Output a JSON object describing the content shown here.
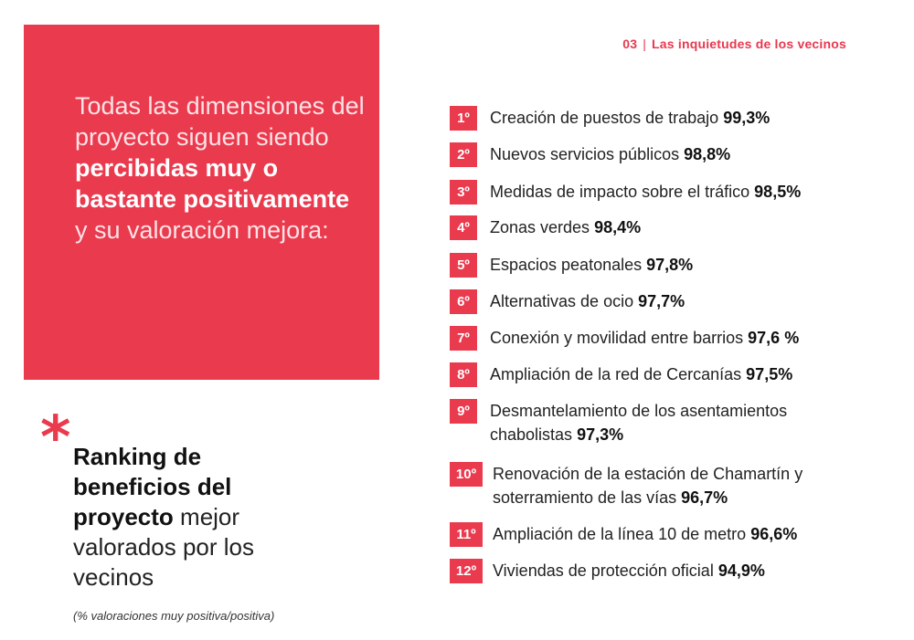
{
  "header": {
    "section": "03",
    "separator": "|",
    "title": "Las inquietudes de los vecinos"
  },
  "intro": {
    "part1": "Todas las dimensiones del proyecto siguen siendo ",
    "bold1": "percibidas muy o bastante positivamente",
    "part2": " y su valoración mejora:"
  },
  "asterisk": "*",
  "ranking": {
    "bold": "Ranking de beneficios del proyecto",
    "rest": " mejor valorados por los vecinos",
    "footnote": "(% valoraciones muy positiva/positiva)"
  },
  "items": [
    {
      "rank": "1º",
      "text": "Creación de puestos de trabajo",
      "value": "99,3%"
    },
    {
      "rank": "2º",
      "text": "Nuevos servicios públicos",
      "value": "98,8%"
    },
    {
      "rank": "3º",
      "text": "Medidas de impacto sobre el tráfico",
      "value": "98,5%"
    },
    {
      "rank": "4º",
      "text": "Zonas verdes",
      "value": "98,4%"
    },
    {
      "rank": "5º",
      "text": "Espacios peatonales",
      "value": "97,8%"
    },
    {
      "rank": "6º",
      "text": "Alternativas de ocio",
      "value": "97,7%"
    },
    {
      "rank": "7º",
      "text": "Conexión y movilidad entre barrios",
      "value": "97,6 %"
    },
    {
      "rank": "8º",
      "text": "Ampliación de la red de Cercanías",
      "value": "97,5%"
    },
    {
      "rank": "9º",
      "text": "Desmantelamiento de los asentamientos chabolistas",
      "value": "97,3%"
    },
    {
      "rank": "10º",
      "text": "Renovación de la estación de Chamartín y soterramiento de las vías",
      "value": "96,7%"
    },
    {
      "rank": "11º",
      "text": "Ampliación de la línea 10 de metro",
      "value": "96,6%"
    },
    {
      "rank": "12º",
      "text": "Viviendas de protección oficial",
      "value": "94,9%"
    }
  ]
}
